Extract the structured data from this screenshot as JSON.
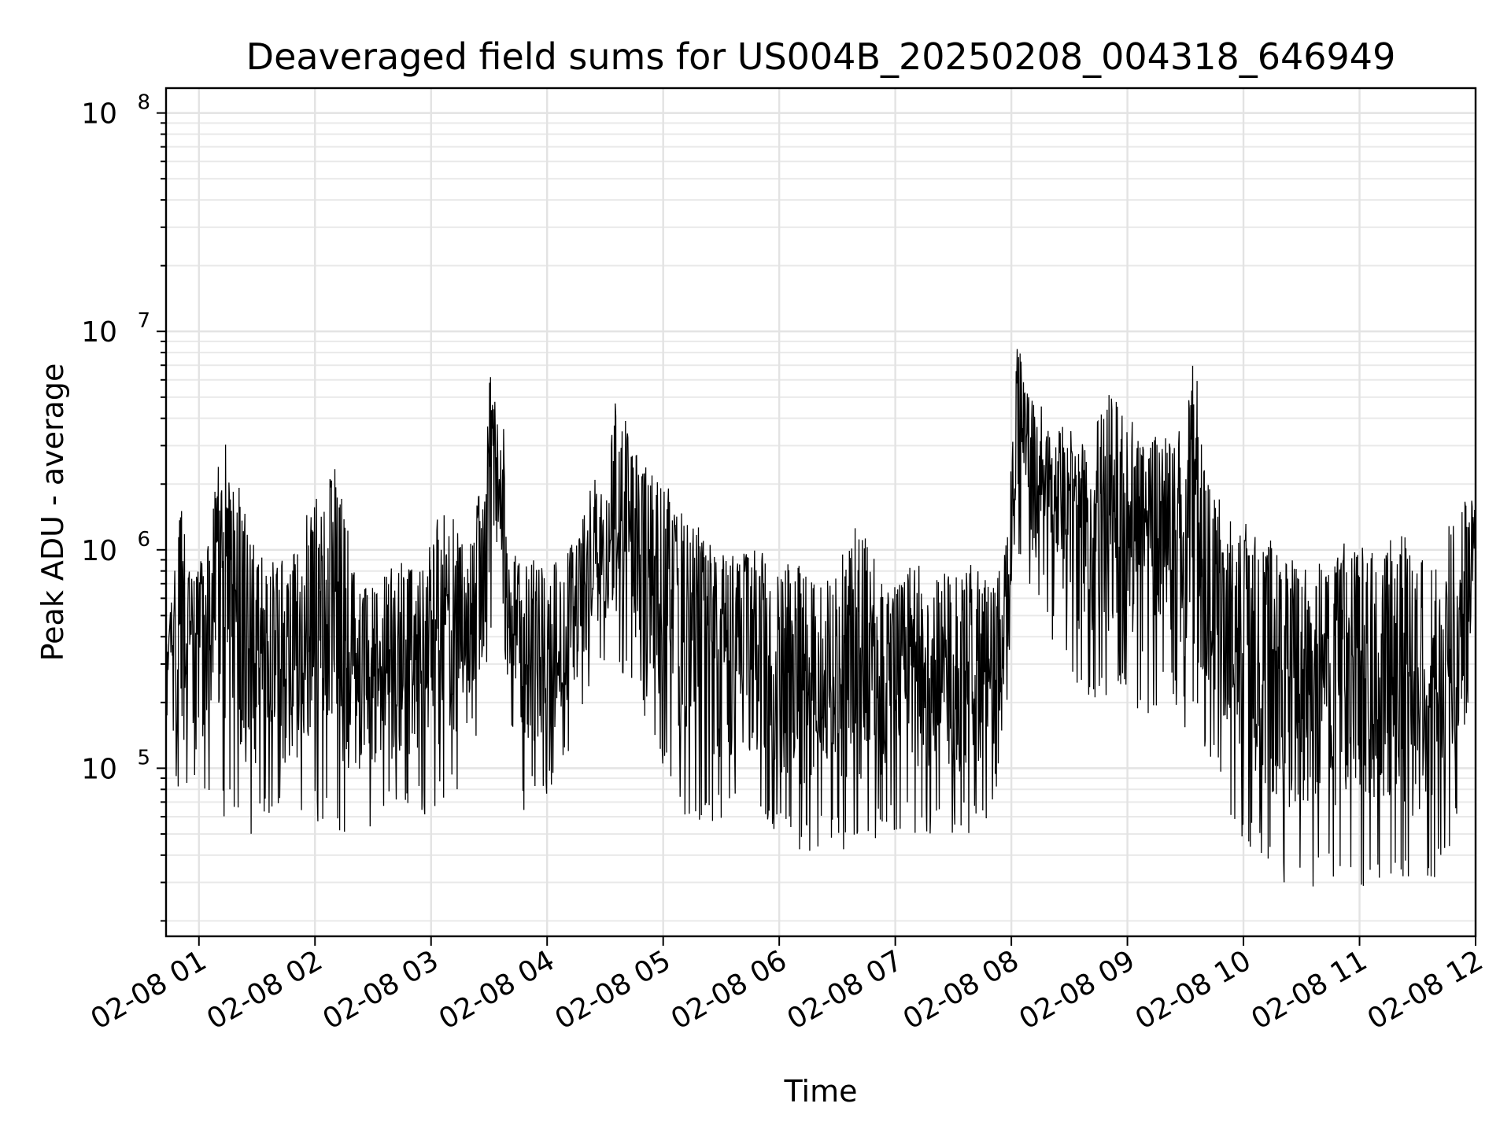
{
  "chart_data": {
    "type": "line",
    "title": "Deaveraged field sums for US004B_20250208_004318_646949",
    "xlabel": "Time",
    "ylabel": "Peak ADU - average",
    "xlim": [
      "2025-02-08T00:43",
      "2025-02-08T12:00"
    ],
    "ylim": [
      17000,
      130000000
    ],
    "yscale": "log",
    "grid": "major and minor",
    "x_ticks": [
      "02-08 01",
      "02-08 02",
      "02-08 03",
      "02-08 04",
      "02-08 05",
      "02-08 06",
      "02-08 07",
      "02-08 08",
      "02-08 09",
      "02-08 10",
      "02-08 11",
      "02-08 12"
    ],
    "y_ticks": [
      {
        "value": 100000,
        "base": "10",
        "exp": "5"
      },
      {
        "value": 1000000,
        "base": "10",
        "exp": "6"
      },
      {
        "value": 10000000,
        "base": "10",
        "exp": "7"
      },
      {
        "value": 100000000,
        "base": "10",
        "exp": "8"
      }
    ],
    "series": [
      {
        "color": "#000000",
        "x": [
          "00:43",
          "00:51",
          "00:58",
          "01:05",
          "01:11",
          "01:17",
          "01:21",
          "01:30",
          "01:38",
          "01:46",
          "01:55",
          "02:10",
          "02:22",
          "02:35",
          "02:48",
          "03:00",
          "03:10",
          "03:20",
          "03:27",
          "03:31",
          "03:35",
          "03:38",
          "03:40",
          "03:48",
          "03:55",
          "04:05",
          "04:15",
          "04:25",
          "04:30",
          "04:35",
          "04:48",
          "04:58",
          "05:10",
          "05:30",
          "05:50",
          "06:10",
          "06:25",
          "06:40",
          "06:55",
          "07:10",
          "07:25",
          "07:40",
          "07:50",
          "07:58",
          "08:03",
          "08:08",
          "08:14",
          "08:20",
          "08:30",
          "08:40",
          "08:50",
          "09:00",
          "09:10",
          "09:20",
          "09:30",
          "09:35",
          "09:40",
          "09:45",
          "09:50",
          "09:55",
          "10:05",
          "10:20",
          "10:35",
          "10:50",
          "11:00",
          "11:10",
          "11:20",
          "11:30",
          "11:40",
          "11:50",
          "11:58"
        ],
        "y": [
          500000,
          1800000,
          800000,
          1200000,
          3300000,
          4700000,
          2000000,
          1000000,
          900000,
          950000,
          1500000,
          2700000,
          700000,
          800000,
          900000,
          1300000,
          1600000,
          1200000,
          2500000,
          7200000,
          3500000,
          5000000,
          1000000,
          900000,
          1000000,
          900000,
          1200000,
          2300000,
          2000000,
          5400000,
          2600000,
          2500000,
          1500000,
          1100000,
          1000000,
          900000,
          800000,
          1400000,
          700000,
          900000,
          800000,
          900000,
          700000,
          1200000,
          9300000,
          6000000,
          5000000,
          4200000,
          3800000,
          3500000,
          5700000,
          4200000,
          3400000,
          3700000,
          4300000,
          9300000,
          2500000,
          2000000,
          1500000,
          1400000,
          1300000,
          1000000,
          800000,
          1100000,
          1200000,
          1100000,
          1200000,
          1100000,
          1000000,
          1500000,
          1900000
        ],
        "low": [
          90000,
          60000,
          70000,
          60000,
          55000,
          60000,
          45000,
          50000,
          55000,
          50000,
          60000,
          50000,
          45000,
          60000,
          60000,
          60000,
          70000,
          80000,
          150000,
          400000,
          300000,
          300000,
          100000,
          60000,
          70000,
          80000,
          150000,
          200000,
          300000,
          250000,
          200000,
          100000,
          60000,
          55000,
          60000,
          40000,
          45000,
          40000,
          50000,
          50000,
          50000,
          50000,
          50000,
          200000,
          900000,
          700000,
          500000,
          400000,
          300000,
          180000,
          200000,
          200000,
          150000,
          250000,
          150000,
          55000,
          100000,
          100000,
          70000,
          55000,
          40000,
          28000,
          28000,
          30000,
          28000,
          30000,
          28000,
          25000,
          30000,
          50000,
          300000
        ]
      }
    ]
  }
}
